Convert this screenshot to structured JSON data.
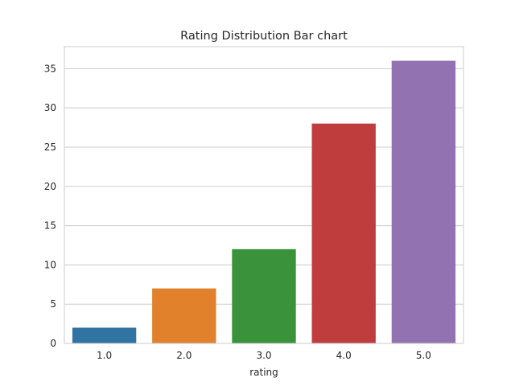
{
  "chart_data": {
    "type": "bar",
    "title": "Rating Distribution Bar chart",
    "xlabel": "rating",
    "ylabel": "",
    "categories": [
      "1.0",
      "2.0",
      "3.0",
      "4.0",
      "5.0"
    ],
    "values": [
      2,
      7,
      12,
      28,
      36
    ],
    "colors": [
      "#3274a1",
      "#e1812c",
      "#3a923a",
      "#c03d3e",
      "#9372b2"
    ],
    "ylim": [
      0,
      37.8
    ],
    "yticks": [
      0,
      5,
      10,
      15,
      20,
      25,
      30,
      35
    ],
    "grid": true,
    "legend": "none"
  }
}
